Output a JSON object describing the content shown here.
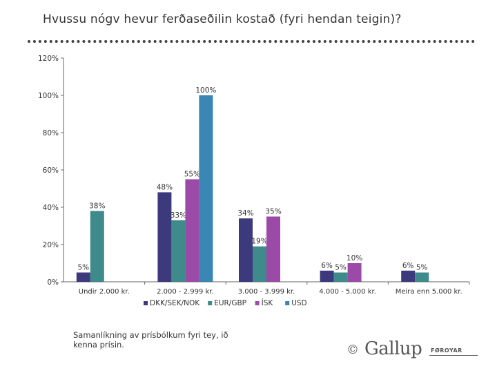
{
  "title": "Hvussu nógv hevur ferðaseðilin kostað (fyri hendan teigin)?",
  "footnote": "Samanlíkning av prísbólkum fyri tey, ið kenna prísin.",
  "logo": {
    "copyright": "©",
    "brand": "Gallup",
    "sub": "FØROYAR"
  },
  "chart_data": {
    "type": "bar",
    "title": "",
    "xlabel": "",
    "ylabel": "",
    "ylim": [
      0,
      120
    ],
    "yticks": [
      "0%",
      "20%",
      "40%",
      "60%",
      "80%",
      "100%",
      "120%"
    ],
    "categories": [
      "Undir 2.000 kr.",
      "2.000 - 2.999 kr.",
      "3.000 - 3.999 kr.",
      "4.000 - 5.000 kr.",
      "Meira enn 5.000 kr."
    ],
    "series": [
      {
        "name": "DKK/SEK/NOK",
        "color": "#3c3a7c",
        "values": [
          5,
          48,
          34,
          6,
          6
        ],
        "labels": [
          "5%",
          "48%",
          "34%",
          "6%",
          "6%"
        ]
      },
      {
        "name": "EUR/GBP",
        "color": "#3f8a8a",
        "values": [
          38,
          33,
          19,
          5,
          5
        ],
        "labels": [
          "38%",
          "33%",
          "19%",
          "5%",
          "5%"
        ]
      },
      {
        "name": "ÍSK",
        "color": "#9b4aa8",
        "values": [
          null,
          55,
          35,
          10,
          null
        ],
        "labels": [
          "",
          "55%",
          "35%",
          "10%",
          ""
        ]
      },
      {
        "name": "USD",
        "color": "#3a86b5",
        "values": [
          null,
          100,
          null,
          null,
          null
        ],
        "labels": [
          "",
          "100%",
          "",
          "",
          ""
        ]
      }
    ],
    "legend_position": "bottom"
  }
}
